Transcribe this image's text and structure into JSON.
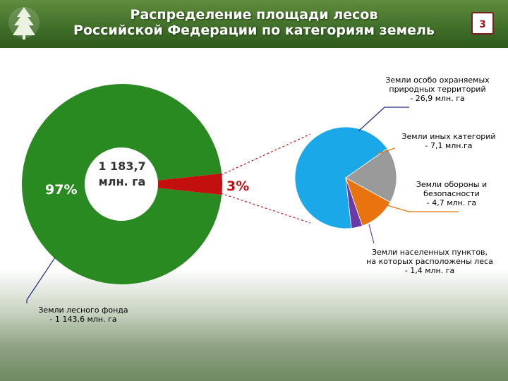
{
  "header": {
    "title_line1": "Распределение площади лесов",
    "title_line2": "Российской Федерации по категориям земель",
    "slide_number": "3"
  },
  "chart_data": [
    {
      "type": "pie",
      "name": "main",
      "center_text_line1": "1 183,7",
      "center_text_line2": "млн. га",
      "slices": [
        {
          "label": "Земли лесного фонда\n- 1 143,6  млн. га",
          "value": 1143.6,
          "percent_label": "97%",
          "color": "#2a8a22"
        },
        {
          "label": "",
          "value": 40.1,
          "percent_label": "3%",
          "color": "#c40f0f"
        }
      ]
    },
    {
      "type": "pie",
      "name": "breakdown",
      "slices": [
        {
          "label": "Земли особо охраняемых\nприродных территорий\n- 26,9 млн. га",
          "value": 26.9,
          "color": "#1aa8e8"
        },
        {
          "label": "Земли иных категорий\n- 7,1 млн.га",
          "value": 7.1,
          "color": "#9a9a9a"
        },
        {
          "label": "Земли обороны и\nбезопасности\n- 4,7 млн. га",
          "value": 4.7,
          "color": "#e8730f"
        },
        {
          "label": "Земли населенных пунктов,\nна которых расположены леса\n- 1,4 млн. га",
          "value": 1.4,
          "color": "#6a3aa8"
        }
      ]
    }
  ],
  "colors": {
    "header_green": "#41702a",
    "accent_red": "#c40f0f",
    "leader_orange": "#e8730f",
    "leader_blue": "#1a2a8a"
  }
}
